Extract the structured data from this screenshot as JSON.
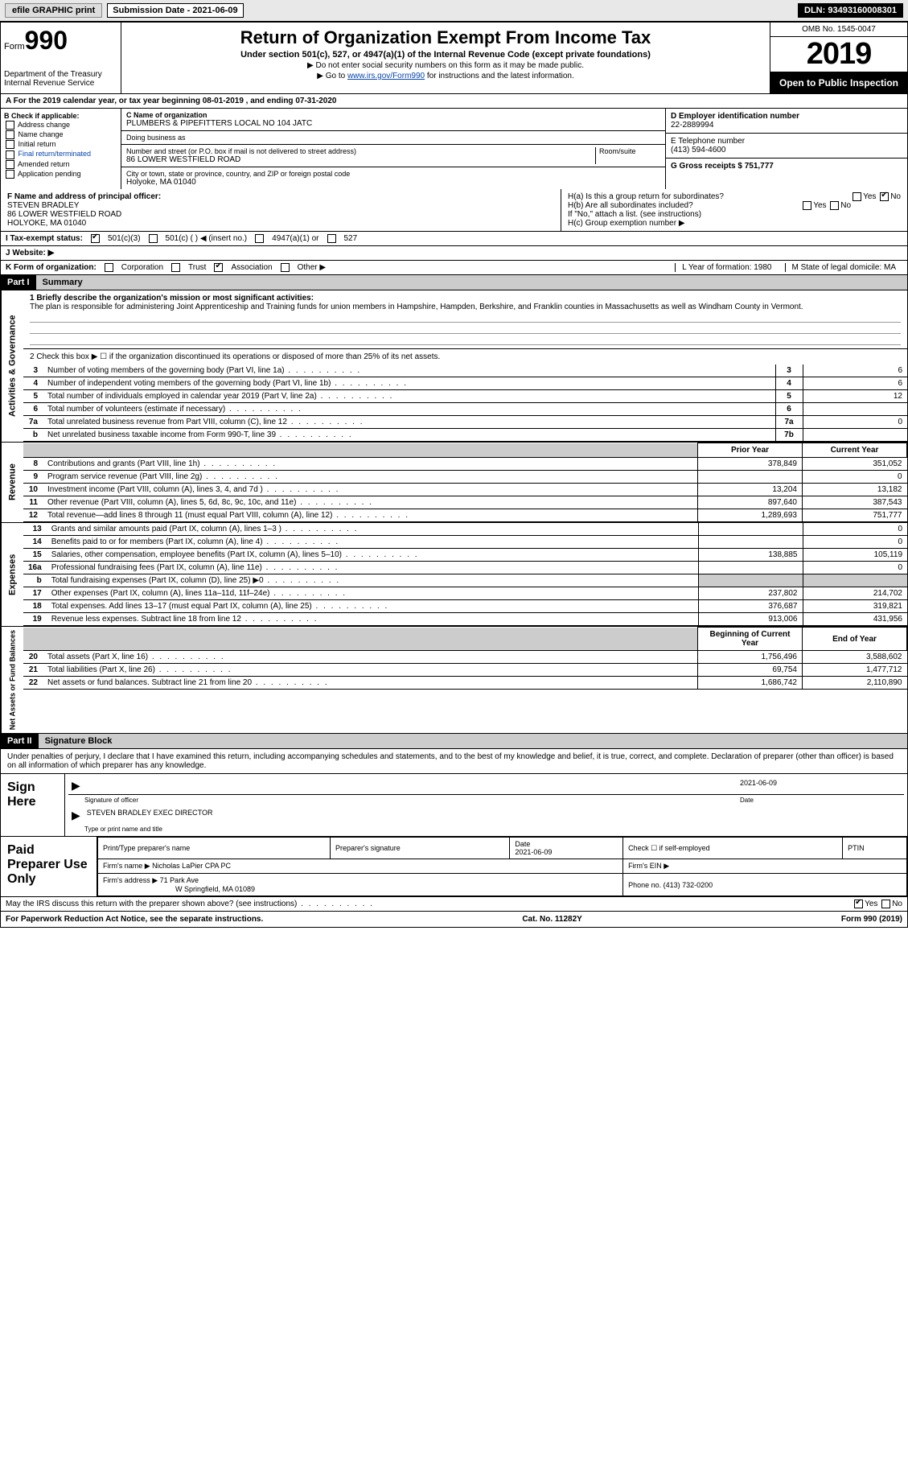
{
  "topbar": {
    "efile_label": "efile GRAPHIC print",
    "sub_date_label": "Submission Date - 2021-06-09",
    "dln_label": "DLN: 93493160008301"
  },
  "header": {
    "form_label": "Form",
    "form_number": "990",
    "dept": "Department of the Treasury\nInternal Revenue Service",
    "title": "Return of Organization Exempt From Income Tax",
    "subtitle": "Under section 501(c), 527, or 4947(a)(1) of the Internal Revenue Code (except private foundations)",
    "note1": "▶ Do not enter social security numbers on this form as it may be made public.",
    "note2_pre": "▶ Go to ",
    "note2_link": "www.irs.gov/Form990",
    "note2_post": " for instructions and the latest information.",
    "omb": "OMB No. 1545-0047",
    "year": "2019",
    "open_public": "Open to Public Inspection"
  },
  "line_a": "A For the 2019 calendar year, or tax year beginning 08-01-2019   , and ending 07-31-2020",
  "col_b": {
    "header": "B Check if applicable:",
    "items": [
      "Address change",
      "Name change",
      "Initial return",
      "Final return/terminated",
      "Amended return",
      "Application pending"
    ]
  },
  "col_c": {
    "name_label": "C Name of organization",
    "name": "PLUMBERS & PIPEFITTERS LOCAL NO 104 JATC",
    "dba_label": "Doing business as",
    "addr_label": "Number and street (or P.O. box if mail is not delivered to street address)",
    "room_label": "Room/suite",
    "addr": "86 LOWER WESTFIELD ROAD",
    "city_label": "City or town, state or province, country, and ZIP or foreign postal code",
    "city": "Holyoke, MA  01040"
  },
  "col_right": {
    "d_label": "D Employer identification number",
    "d_val": "22-2889994",
    "e_label": "E Telephone number",
    "e_val": "(413) 594-4600",
    "g_label": "G Gross receipts $ 751,777"
  },
  "row_f": {
    "label": "F  Name and address of principal officer:",
    "name": "STEVEN BRADLEY",
    "addr1": "86 LOWER WESTFIELD ROAD",
    "addr2": "HOLYOKE, MA  01040",
    "ha_label": "H(a)  Is this a group return for subordinates?",
    "hb_label": "H(b)  Are all subordinates included?",
    "hb_note": "If \"No,\" attach a list. (see instructions)",
    "hc_label": "H(c)  Group exemption number ▶",
    "yes": "Yes",
    "no": "No"
  },
  "row_i": {
    "label": "I  Tax-exempt status:",
    "o1": "501(c)(3)",
    "o2": "501(c) (  ) ◀ (insert no.)",
    "o3": "4947(a)(1) or",
    "o4": "527"
  },
  "row_j": {
    "label": "J  Website: ▶"
  },
  "row_k": {
    "label": "K Form of organization:",
    "o1": "Corporation",
    "o2": "Trust",
    "o3": "Association",
    "o4": "Other ▶",
    "l": "L Year of formation: 1980",
    "m": "M State of legal domicile: MA"
  },
  "parts": {
    "p1": "Part I",
    "p1_title": "Summary",
    "p2": "Part II",
    "p2_title": "Signature Block"
  },
  "summary": {
    "q1_label": "1  Briefly describe the organization's mission or most significant activities:",
    "q1_text": "The plan is responsible for administering Joint Apprenticeship and Training funds for union members in Hampshire, Hampden, Berkshire, and Franklin counties in Massachusetts as well as Windham County in Vermont.",
    "q2": "2   Check this box ▶ ☐  if the organization discontinued its operations or disposed of more than 25% of its net assets.",
    "sections": {
      "gov": "Activities & Governance",
      "rev": "Revenue",
      "exp": "Expenses",
      "net": "Net Assets or Fund Balances"
    },
    "col_headers": {
      "prior": "Prior Year",
      "current": "Current Year",
      "begin": "Beginning of Current Year",
      "end": "End of Year"
    },
    "rows_gov": [
      {
        "n": "3",
        "t": "Number of voting members of the governing body (Part VI, line 1a)",
        "box": "3",
        "v": "6"
      },
      {
        "n": "4",
        "t": "Number of independent voting members of the governing body (Part VI, line 1b)",
        "box": "4",
        "v": "6"
      },
      {
        "n": "5",
        "t": "Total number of individuals employed in calendar year 2019 (Part V, line 2a)",
        "box": "5",
        "v": "12"
      },
      {
        "n": "6",
        "t": "Total number of volunteers (estimate if necessary)",
        "box": "6",
        "v": ""
      },
      {
        "n": "7a",
        "t": "Total unrelated business revenue from Part VIII, column (C), line 12",
        "box": "7a",
        "v": "0"
      },
      {
        "n": "b",
        "t": "Net unrelated business taxable income from Form 990-T, line 39",
        "box": "7b",
        "v": ""
      }
    ],
    "rows_rev": [
      {
        "n": "8",
        "t": "Contributions and grants (Part VIII, line 1h)",
        "p": "378,849",
        "c": "351,052"
      },
      {
        "n": "9",
        "t": "Program service revenue (Part VIII, line 2g)",
        "p": "",
        "c": "0"
      },
      {
        "n": "10",
        "t": "Investment income (Part VIII, column (A), lines 3, 4, and 7d )",
        "p": "13,204",
        "c": "13,182"
      },
      {
        "n": "11",
        "t": "Other revenue (Part VIII, column (A), lines 5, 6d, 8c, 9c, 10c, and 11e)",
        "p": "897,640",
        "c": "387,543"
      },
      {
        "n": "12",
        "t": "Total revenue—add lines 8 through 11 (must equal Part VIII, column (A), line 12)",
        "p": "1,289,693",
        "c": "751,777"
      }
    ],
    "rows_exp": [
      {
        "n": "13",
        "t": "Grants and similar amounts paid (Part IX, column (A), lines 1–3 )",
        "p": "",
        "c": "0"
      },
      {
        "n": "14",
        "t": "Benefits paid to or for members (Part IX, column (A), line 4)",
        "p": "",
        "c": "0"
      },
      {
        "n": "15",
        "t": "Salaries, other compensation, employee benefits (Part IX, column (A), lines 5–10)",
        "p": "138,885",
        "c": "105,119"
      },
      {
        "n": "16a",
        "t": "Professional fundraising fees (Part IX, column (A), line 11e)",
        "p": "",
        "c": "0"
      },
      {
        "n": "b",
        "t": "Total fundraising expenses (Part IX, column (D), line 25) ▶0",
        "p": "—",
        "c": "—",
        "shaded": true
      },
      {
        "n": "17",
        "t": "Other expenses (Part IX, column (A), lines 11a–11d, 11f–24e)",
        "p": "237,802",
        "c": "214,702"
      },
      {
        "n": "18",
        "t": "Total expenses. Add lines 13–17 (must equal Part IX, column (A), line 25)",
        "p": "376,687",
        "c": "319,821"
      },
      {
        "n": "19",
        "t": "Revenue less expenses. Subtract line 18 from line 12",
        "p": "913,006",
        "c": "431,956"
      }
    ],
    "rows_net": [
      {
        "n": "20",
        "t": "Total assets (Part X, line 16)",
        "p": "1,756,496",
        "c": "3,588,602"
      },
      {
        "n": "21",
        "t": "Total liabilities (Part X, line 26)",
        "p": "69,754",
        "c": "1,477,712"
      },
      {
        "n": "22",
        "t": "Net assets or fund balances. Subtract line 21 from line 20",
        "p": "1,686,742",
        "c": "2,110,890"
      }
    ]
  },
  "sig": {
    "penalties": "Under penalties of perjury, I declare that I have examined this return, including accompanying schedules and statements, and to the best of my knowledge and belief, it is true, correct, and complete. Declaration of preparer (other than officer) is based on all information of which preparer has any knowledge.",
    "sign_here": "Sign Here",
    "sig_officer": "Signature of officer",
    "date_label": "Date",
    "date_val": "2021-06-09",
    "typed": "STEVEN BRADLEY EXEC DIRECTOR",
    "typed_label": "Type or print name and title"
  },
  "prep": {
    "header": "Paid Preparer Use Only",
    "cols": {
      "c1": "Print/Type preparer's name",
      "c2": "Preparer's signature",
      "c3_label": "Date",
      "c3_val": "2021-06-09",
      "c4": "Check ☐ if self-employed",
      "c5": "PTIN"
    },
    "firm_name_label": "Firm's name   ▶",
    "firm_name": "Nicholas LaPier CPA PC",
    "firm_ein_label": "Firm's EIN ▶",
    "firm_addr_label": "Firm's address ▶",
    "firm_addr1": "71 Park Ave",
    "firm_addr2": "W Springfield, MA  01089",
    "phone_label": "Phone no. (413) 732-0200"
  },
  "footer": {
    "discuss": "May the IRS discuss this return with the preparer shown above? (see instructions)",
    "yes": "Yes",
    "no": "No",
    "paperwork": "For Paperwork Reduction Act Notice, see the separate instructions.",
    "cat": "Cat. No. 11282Y",
    "form": "Form 990 (2019)"
  }
}
